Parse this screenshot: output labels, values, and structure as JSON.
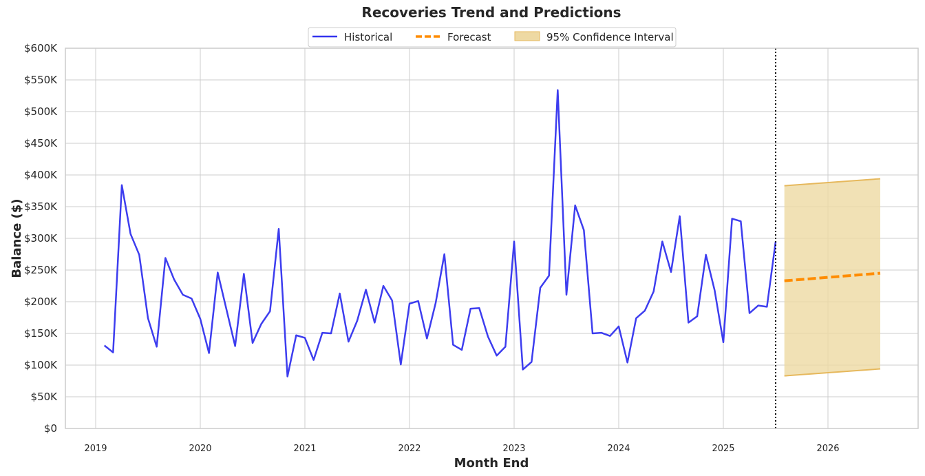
{
  "chart_data": {
    "type": "line",
    "title": "Recoveries Trend and Predictions",
    "xlabel": "Month End",
    "ylabel": "Balance ($)",
    "ylim": [
      0,
      600000
    ],
    "yticks": [
      {
        "value": 0,
        "label": "$0"
      },
      {
        "value": 50000,
        "label": "$50K"
      },
      {
        "value": 100000,
        "label": "$100K"
      },
      {
        "value": 150000,
        "label": "$150K"
      },
      {
        "value": 200000,
        "label": "$200K"
      },
      {
        "value": 250000,
        "label": "$250K"
      },
      {
        "value": 300000,
        "label": "$300K"
      },
      {
        "value": 350000,
        "label": "$350K"
      },
      {
        "value": 400000,
        "label": "$400K"
      },
      {
        "value": 450000,
        "label": "$450K"
      },
      {
        "value": 500000,
        "label": "$500K"
      },
      {
        "value": 550000,
        "label": "$550K"
      },
      {
        "value": 600000,
        "label": "$600K"
      }
    ],
    "xticks": [
      "2019",
      "2020",
      "2021",
      "2022",
      "2023",
      "2024",
      "2025",
      "2026"
    ],
    "grid": true,
    "legend_position": "top-center",
    "colors": {
      "historical": "#3333ee",
      "forecast": "#ff8c00",
      "confidence_fill": "#eed9a3",
      "confidence_edge": "#e6b85c",
      "grid": "#cccccc",
      "divider": "#000000"
    },
    "forecast_start_marker": "2025-07-01",
    "series": [
      {
        "name": "Historical",
        "style": "solid",
        "x": [
          "2019-02",
          "2019-03",
          "2019-04",
          "2019-05",
          "2019-06",
          "2019-07",
          "2019-08",
          "2019-09",
          "2019-10",
          "2019-11",
          "2019-12",
          "2020-01",
          "2020-02",
          "2020-03",
          "2020-04",
          "2020-05",
          "2020-06",
          "2020-07",
          "2020-08",
          "2020-09",
          "2020-10",
          "2020-11",
          "2020-12",
          "2021-01",
          "2021-02",
          "2021-03",
          "2021-04",
          "2021-05",
          "2021-06",
          "2021-07",
          "2021-08",
          "2021-09",
          "2021-10",
          "2021-11",
          "2021-12",
          "2022-01",
          "2022-02",
          "2022-03",
          "2022-04",
          "2022-05",
          "2022-06",
          "2022-07",
          "2022-08",
          "2022-09",
          "2022-10",
          "2022-11",
          "2022-12",
          "2023-01",
          "2023-02",
          "2023-03",
          "2023-04",
          "2023-05",
          "2023-06",
          "2023-07",
          "2023-08",
          "2023-09",
          "2023-10",
          "2023-11",
          "2023-12",
          "2024-01",
          "2024-02",
          "2024-03",
          "2024-04",
          "2024-05",
          "2024-06",
          "2024-07",
          "2024-08",
          "2024-09",
          "2024-10",
          "2024-11",
          "2024-12",
          "2025-01",
          "2025-02",
          "2025-03",
          "2025-04",
          "2025-05",
          "2025-06",
          "2025-07"
        ],
        "values": [
          131000,
          120000,
          384000,
          307000,
          274000,
          174000,
          129000,
          269000,
          235000,
          211000,
          205000,
          173000,
          119000,
          246000,
          188000,
          130000,
          244000,
          135000,
          165000,
          185000,
          315000,
          82000,
          147000,
          143000,
          108000,
          151000,
          150000,
          213000,
          137000,
          170000,
          219000,
          167000,
          225000,
          202000,
          101000,
          197000,
          201000,
          142000,
          198000,
          275000,
          132000,
          124000,
          189000,
          190000,
          145000,
          115000,
          129000,
          295000,
          93000,
          105000,
          222000,
          241000,
          534000,
          211000,
          352000,
          313000,
          150000,
          151000,
          146000,
          161000,
          104000,
          174000,
          186000,
          216000,
          295000,
          247000,
          335000,
          167000,
          177000,
          274000,
          218000,
          136000,
          331000,
          327000,
          182000,
          194000,
          192000,
          295000
        ]
      },
      {
        "name": "Forecast",
        "style": "dashed",
        "x": [
          "2025-08",
          "2026-07"
        ],
        "values": [
          233000,
          245000
        ]
      }
    ],
    "confidence_interval": {
      "name": "95% Confidence Interval",
      "x": [
        "2025-08",
        "2026-07"
      ],
      "lower": [
        83000,
        94000
      ],
      "upper": [
        383000,
        394000
      ]
    }
  }
}
